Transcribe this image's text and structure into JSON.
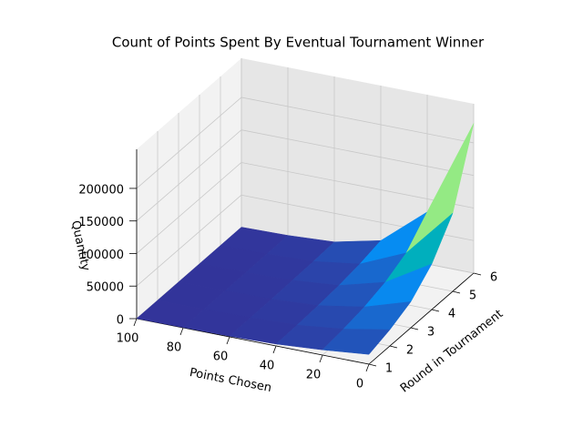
{
  "chart_data": {
    "type": "surface",
    "title": "Count of Points Spent By Eventual Tournament Winner",
    "xlabel": "Points Chosen",
    "ylabel": "Round in Tournament",
    "zlabel": "Quantity",
    "x": [
      0,
      20,
      40,
      60,
      80,
      100
    ],
    "y": [
      1,
      2,
      3,
      4,
      5,
      6
    ],
    "z": [
      [
        15000,
        8000,
        3000,
        1000,
        500,
        200
      ],
      [
        25000,
        12000,
        4000,
        1500,
        600,
        200
      ],
      [
        40000,
        18000,
        6000,
        2000,
        800,
        300
      ],
      [
        70000,
        28000,
        9000,
        3000,
        1000,
        400
      ],
      [
        120000,
        45000,
        14000,
        4000,
        1500,
        500
      ],
      [
        230000,
        80000,
        22000,
        6000,
        2000,
        700
      ]
    ],
    "colormap": [
      "#333399",
      "#0099ff",
      "#00cc66",
      "#ffff99",
      "#805c54",
      "#ffffff"
    ],
    "xlim": [
      0,
      100
    ],
    "ylim": [
      1,
      6
    ],
    "zlim": [
      0,
      260000
    ],
    "xticks": [
      0,
      20,
      40,
      60,
      80,
      100
    ],
    "yticks": [
      1,
      2,
      3,
      4,
      5,
      6
    ],
    "zticks": [
      0,
      50000,
      100000,
      150000,
      200000
    ],
    "grid": true
  }
}
